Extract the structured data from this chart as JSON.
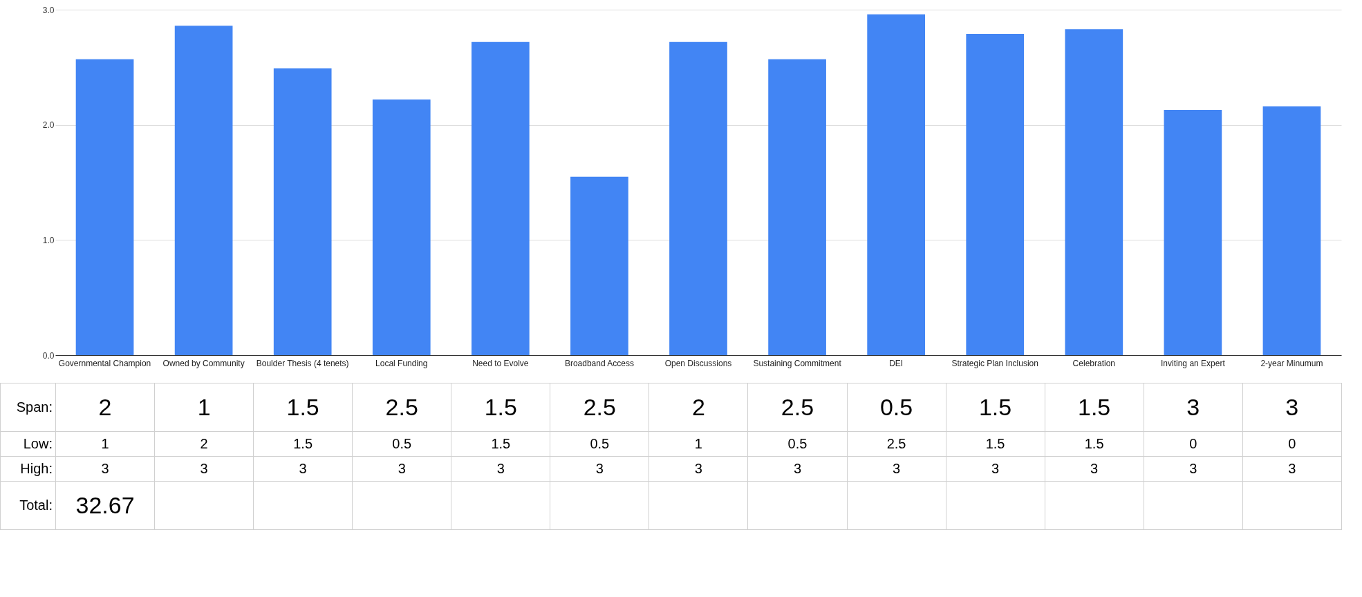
{
  "chart_data": {
    "type": "bar",
    "categories": [
      "Governmental Champion",
      "Owned by Community",
      "Boulder Thesis (4 tenets)",
      "Local Funding",
      "Need to Evolve",
      "Broadband Access",
      "Open Discussions",
      "Sustaining Commitment",
      "DEI",
      "Strategic Plan Inclusion",
      "Celebration",
      "Inviting an Expert",
      "2-year Minumum"
    ],
    "values": [
      2.57,
      2.86,
      2.49,
      2.22,
      2.72,
      1.55,
      2.72,
      2.57,
      2.96,
      2.79,
      2.83,
      2.13,
      2.16
    ],
    "color": "#4285f4",
    "ylim": [
      0,
      3
    ],
    "yticks": [
      {
        "value": 0,
        "label": "0.0"
      },
      {
        "value": 1,
        "label": "1.0"
      },
      {
        "value": 2,
        "label": "2.0"
      },
      {
        "value": 3,
        "label": "3.0"
      }
    ],
    "grid": "y",
    "annotations": [
      "Span:",
      "2",
      "1",
      "1.5",
      "2.5",
      "1.5",
      "2.5",
      "2",
      "2.5",
      "0.5",
      "1.5",
      "1.5",
      "3",
      "3",
      "Low:",
      "1",
      "2",
      "1.5",
      "0.5",
      "1.5",
      "0.5",
      "1",
      "0.5",
      "2.5",
      "1.5",
      "1.5",
      "0",
      "0",
      "High:",
      "3",
      "3",
      "3",
      "3",
      "3",
      "3",
      "3",
      "3",
      "3",
      "3",
      "3",
      "3",
      "3",
      "Total:",
      "32.67"
    ]
  }
}
